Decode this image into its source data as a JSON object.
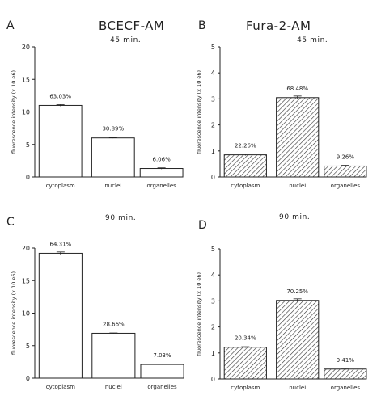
{
  "headers": {
    "left": "BCECF-AM",
    "right": "Fura-2-AM"
  },
  "chart_data": [
    {
      "panel": "A",
      "type": "bar",
      "subtitle": "45 min.",
      "ylabel": "fluorescence intensity (x 10 e6)",
      "ylim": [
        0,
        20
      ],
      "yticks": [
        0,
        5,
        10,
        15,
        20
      ],
      "categories": [
        "cytoplasm",
        "nuclei",
        "organelles"
      ],
      "values": [
        11.0,
        6.0,
        1.3
      ],
      "errors": [
        0.12,
        0.05,
        0.1
      ],
      "labels": [
        "63.03%",
        "30.89%",
        "6.06%"
      ],
      "fill": "white"
    },
    {
      "panel": "B",
      "type": "bar",
      "subtitle": "45 min.",
      "ylabel": "fluorescence intensity (x 10 e6)",
      "ylim": [
        0,
        5
      ],
      "yticks": [
        0,
        1,
        2,
        3,
        4,
        5
      ],
      "categories": [
        "cytoplasm",
        "nuclei",
        "organelles"
      ],
      "values": [
        0.85,
        3.05,
        0.42
      ],
      "errors": [
        0.03,
        0.06,
        0.03
      ],
      "labels": [
        "22.26%",
        "68.48%",
        "9.26%"
      ],
      "fill": "hatched"
    },
    {
      "panel": "C",
      "type": "bar",
      "subtitle": "90 min.",
      "ylabel": "fluorescence intensity (x 10 e6)",
      "ylim": [
        0,
        20
      ],
      "yticks": [
        0,
        5,
        10,
        15,
        20
      ],
      "categories": [
        "cytoplasm",
        "nuclei",
        "organelles"
      ],
      "values": [
        19.2,
        6.9,
        2.1
      ],
      "errors": [
        0.2,
        0.05,
        0.05
      ],
      "labels": [
        "64.31%",
        "28.66%",
        "7.03%"
      ],
      "fill": "white"
    },
    {
      "panel": "D",
      "type": "bar",
      "subtitle": "90 min.",
      "ylabel": "fluorescence intensity (x 10 e6)",
      "ylim": [
        0,
        5
      ],
      "yticks": [
        0,
        1,
        2,
        3,
        4,
        5
      ],
      "categories": [
        "cytoplasm",
        "nuclei",
        "organelles"
      ],
      "values": [
        1.22,
        3.02,
        0.38
      ],
      "errors": [
        0.02,
        0.06,
        0.03
      ],
      "labels": [
        "20.34%",
        "70.25%",
        "9.41%"
      ],
      "fill": "hatched"
    }
  ]
}
